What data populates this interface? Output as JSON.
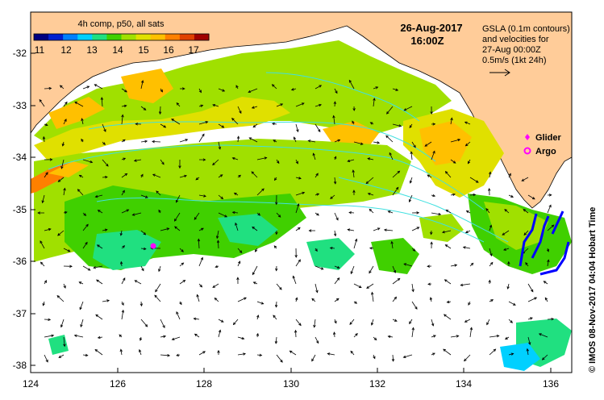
{
  "colorbar": {
    "title": "4h comp, p50, all sats",
    "ticks": [
      "11",
      "12",
      "13",
      "14",
      "15",
      "16",
      "17"
    ],
    "colors": [
      "#000080",
      "#0020d0",
      "#0080ff",
      "#00d0ff",
      "#20e080",
      "#40d000",
      "#a0e000",
      "#e0e000",
      "#ffc000",
      "#ff8000",
      "#e04000",
      "#a00000"
    ]
  },
  "date": "26-Aug-2017",
  "time": "16:00Z",
  "annotation": {
    "line1": "GSLA (0.1m contours)",
    "line2": "and velocities for",
    "line3": "27-Aug 00:00Z",
    "line4": "0.5m/s (1kt 24h)"
  },
  "legend": {
    "glider": "Glider",
    "argo": "Argo"
  },
  "credit": "© IMOS 08-Nov-2017 04:04 Hobart Time",
  "axes": {
    "x_ticks": [
      "124",
      "126",
      "128",
      "130",
      "132",
      "134",
      "136"
    ],
    "y_ticks": [
      "-32",
      "-33",
      "-34",
      "-35",
      "-36",
      "-37",
      "-38"
    ]
  },
  "colors": {
    "land": "#ffcc99",
    "glider_marker": "#ff00ff",
    "argo_marker": "#ff00ff",
    "track": "#0000ff",
    "contour": "#40e0e0"
  }
}
